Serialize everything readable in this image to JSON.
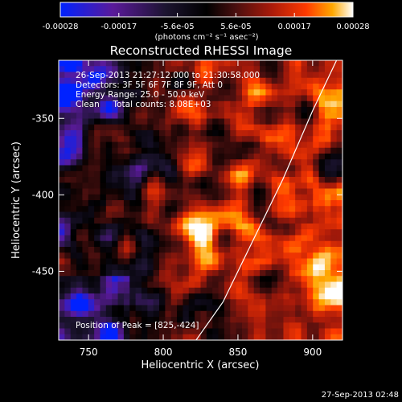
{
  "chart_data": {
    "type": "heatmap",
    "title": "Reconstructed RHESSI Image",
    "xlabel": "Heliocentric X (arcsec)",
    "ylabel": "Heliocentric Y (arcsec)",
    "xlim": [
      730,
      920
    ],
    "ylim": [
      -495,
      -312
    ],
    "x_ticks": [
      750,
      800,
      850,
      900
    ],
    "y_ticks": [
      -350,
      -400,
      -450
    ],
    "colorbar": {
      "ticks": [
        "-0.00028",
        "-0.00017",
        "-5.6e-05",
        "5.6e-05",
        "0.00017",
        "0.00028"
      ],
      "range": [
        -0.00028,
        0.00028
      ],
      "unit_label": "(photons cm⁻² s⁻¹ asec⁻²)",
      "colors": [
        "#0022ff",
        "#5a1a9a",
        "#1c1430",
        "#000000",
        "#4a0f0f",
        "#a81a0a",
        "#ff3a00",
        "#ffa800",
        "#ffffff"
      ]
    },
    "info_lines": [
      "26-Sep-2013 21:27:12.000 to 21:30:58.000",
      "Detectors: 3F 5F 6F 7F 8F 9F, Att 0",
      "Energy Range: 25.0 - 50.0 keV",
      "Clean     Total counts: 8.08E+03"
    ],
    "peak_label": "Position of Peak = [825,-424]",
    "peak": [
      825,
      -424
    ],
    "limb_curve": [
      [
        822,
        -495
      ],
      [
        840,
        -470
      ],
      [
        860,
        -430
      ],
      [
        880,
        -390
      ],
      [
        900,
        -345
      ],
      [
        917,
        -310
      ]
    ]
  },
  "footer_timestamp": "27-Sep-2013 02:48"
}
